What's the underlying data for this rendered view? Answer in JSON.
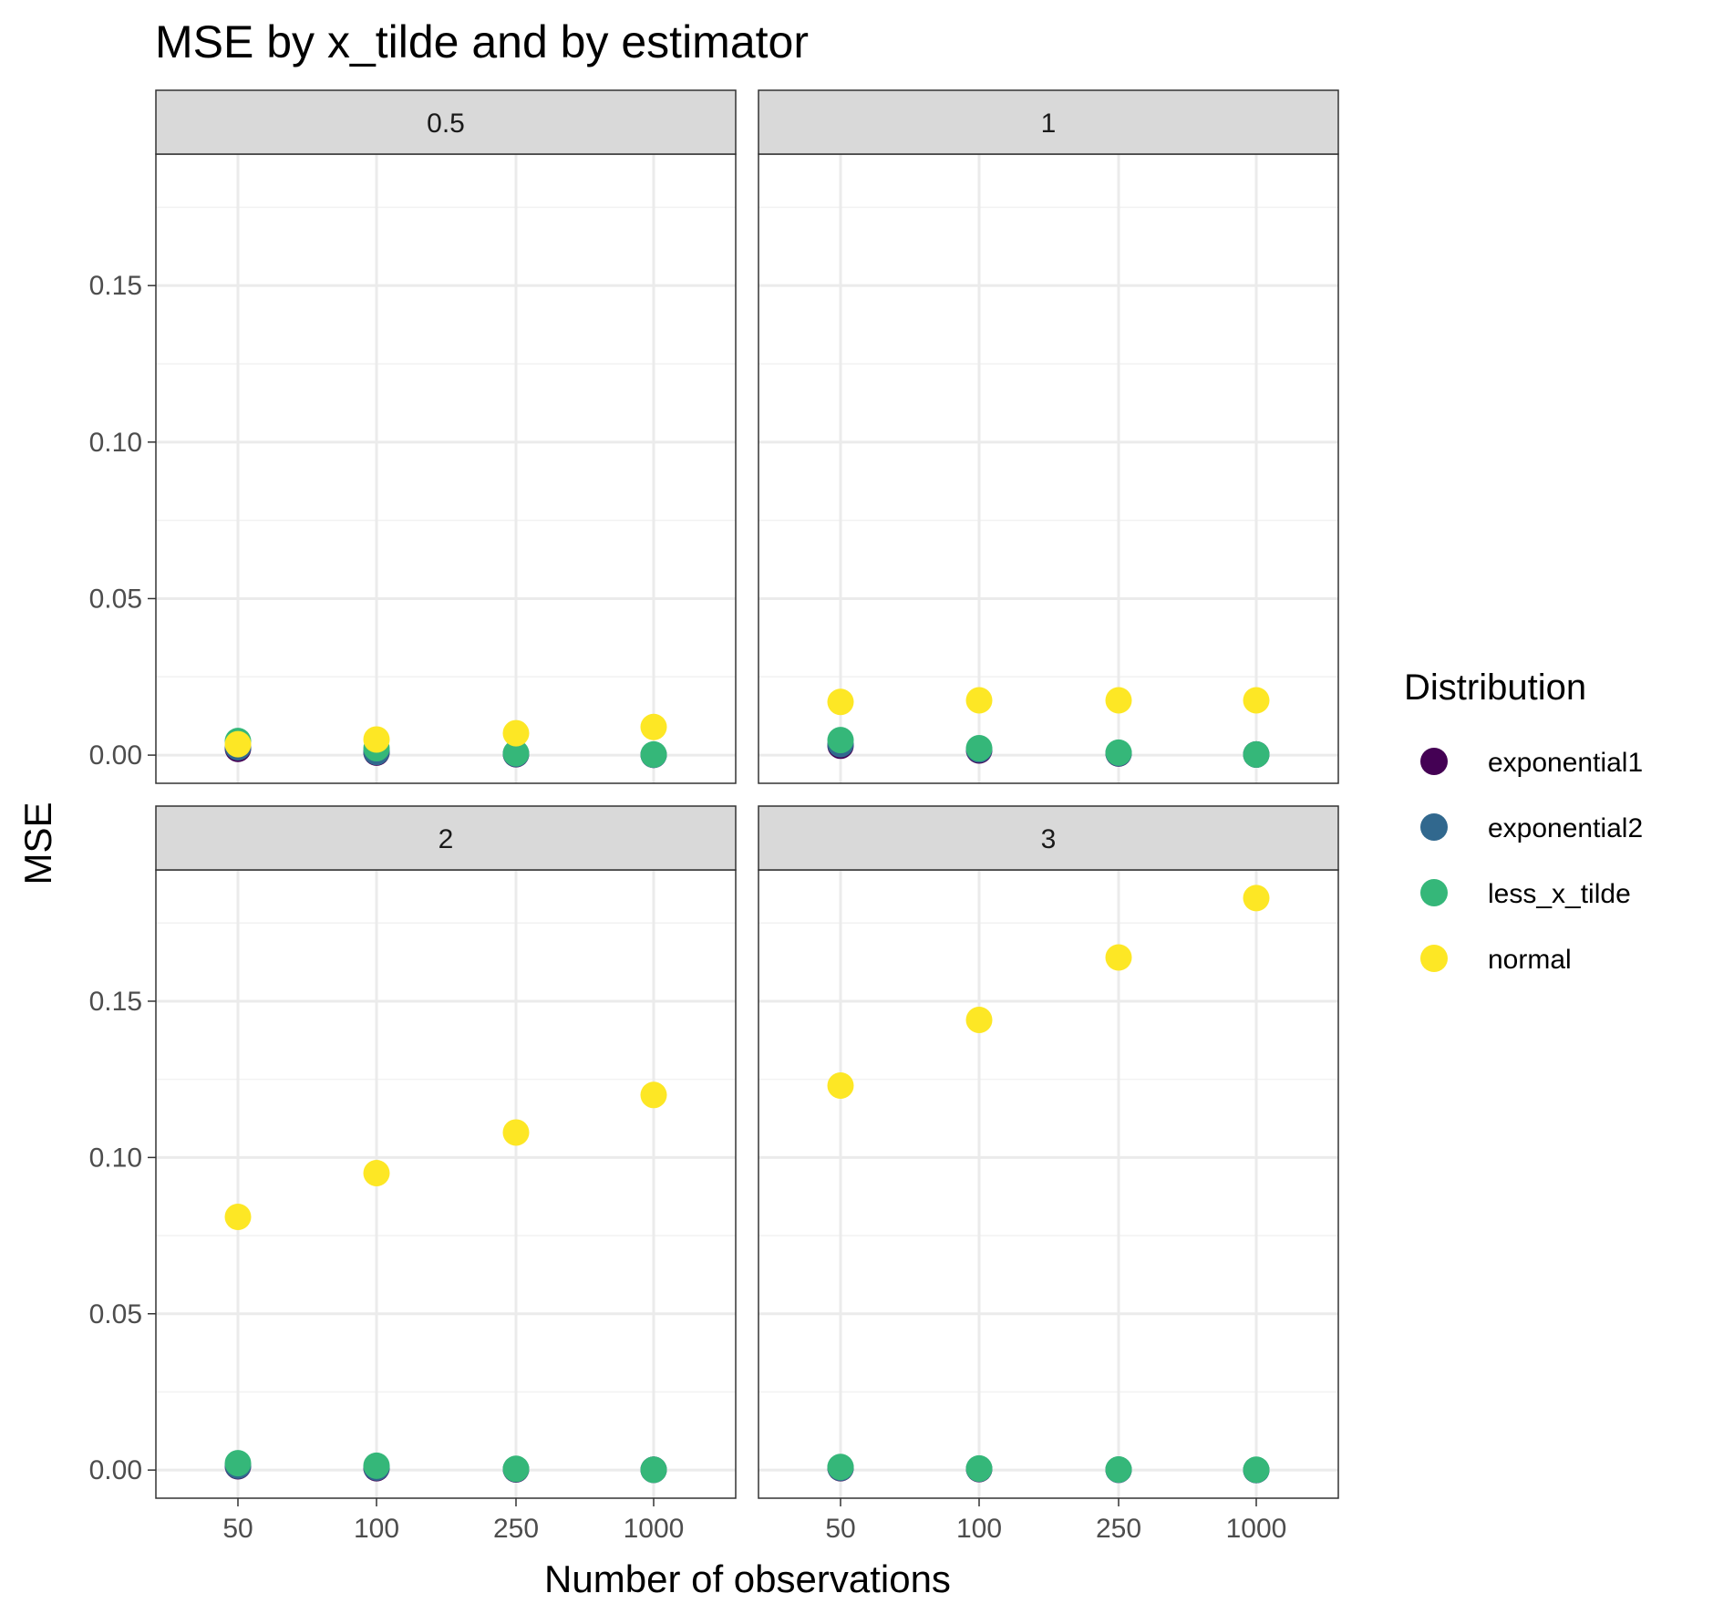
{
  "chart_data": {
    "type": "scatter",
    "title": "MSE by x_tilde and by estimator",
    "xlabel": "Number of observations",
    "ylabel": "MSE",
    "categories": [
      "50",
      "100",
      "250",
      "1000"
    ],
    "ylim": [
      -0.009,
      0.192
    ],
    "yticks": [
      0.0,
      0.05,
      0.1,
      0.15
    ],
    "ytick_labels": [
      "0.00",
      "0.05",
      "0.10",
      "0.15"
    ],
    "grid": true,
    "legend": {
      "title": "Distribution",
      "position": "right",
      "entries": [
        "exponential1",
        "exponential2",
        "less_x_tilde",
        "normal"
      ]
    },
    "colors": {
      "exponential1": "#440154",
      "exponential2": "#31688E",
      "less_x_tilde": "#35B779",
      "normal": "#FDE725"
    },
    "panels": [
      {
        "label": "0.5",
        "series": [
          {
            "name": "exponential1",
            "values": [
              0.002,
              0.0008,
              0.0003,
              0.0001
            ]
          },
          {
            "name": "exponential2",
            "values": [
              0.0025,
              0.001,
              0.0004,
              0.0001
            ]
          },
          {
            "name": "less_x_tilde",
            "values": [
              0.0045,
              0.0022,
              0.0006,
              0.0002
            ]
          },
          {
            "name": "normal",
            "values": [
              0.0035,
              0.005,
              0.007,
              0.009
            ]
          }
        ]
      },
      {
        "label": "1",
        "series": [
          {
            "name": "exponential1",
            "values": [
              0.003,
              0.0015,
              0.0005,
              0.0002
            ]
          },
          {
            "name": "exponential2",
            "values": [
              0.0035,
              0.0018,
              0.0006,
              0.0002
            ]
          },
          {
            "name": "less_x_tilde",
            "values": [
              0.0048,
              0.0022,
              0.0008,
              0.0002
            ]
          },
          {
            "name": "normal",
            "values": [
              0.017,
              0.0175,
              0.0175,
              0.0175
            ]
          }
        ]
      },
      {
        "label": "2",
        "series": [
          {
            "name": "exponential1",
            "values": [
              0.0012,
              0.0006,
              0.0002,
              0.0001
            ]
          },
          {
            "name": "exponential2",
            "values": [
              0.0014,
              0.0008,
              0.0003,
              0.0001
            ]
          },
          {
            "name": "less_x_tilde",
            "values": [
              0.0022,
              0.0014,
              0.0004,
              0.0001
            ]
          },
          {
            "name": "normal",
            "values": [
              0.081,
              0.095,
              0.108,
              0.12
            ]
          }
        ]
      },
      {
        "label": "3",
        "series": [
          {
            "name": "exponential1",
            "values": [
              0.0006,
              0.0003,
              0.0001,
              0.0
            ]
          },
          {
            "name": "exponential2",
            "values": [
              0.0007,
              0.0004,
              0.0001,
              0.0
            ]
          },
          {
            "name": "less_x_tilde",
            "values": [
              0.001,
              0.0005,
              0.0002,
              0.0001
            ]
          },
          {
            "name": "normal",
            "values": [
              0.123,
              0.144,
              0.164,
              0.183
            ]
          }
        ]
      }
    ]
  }
}
